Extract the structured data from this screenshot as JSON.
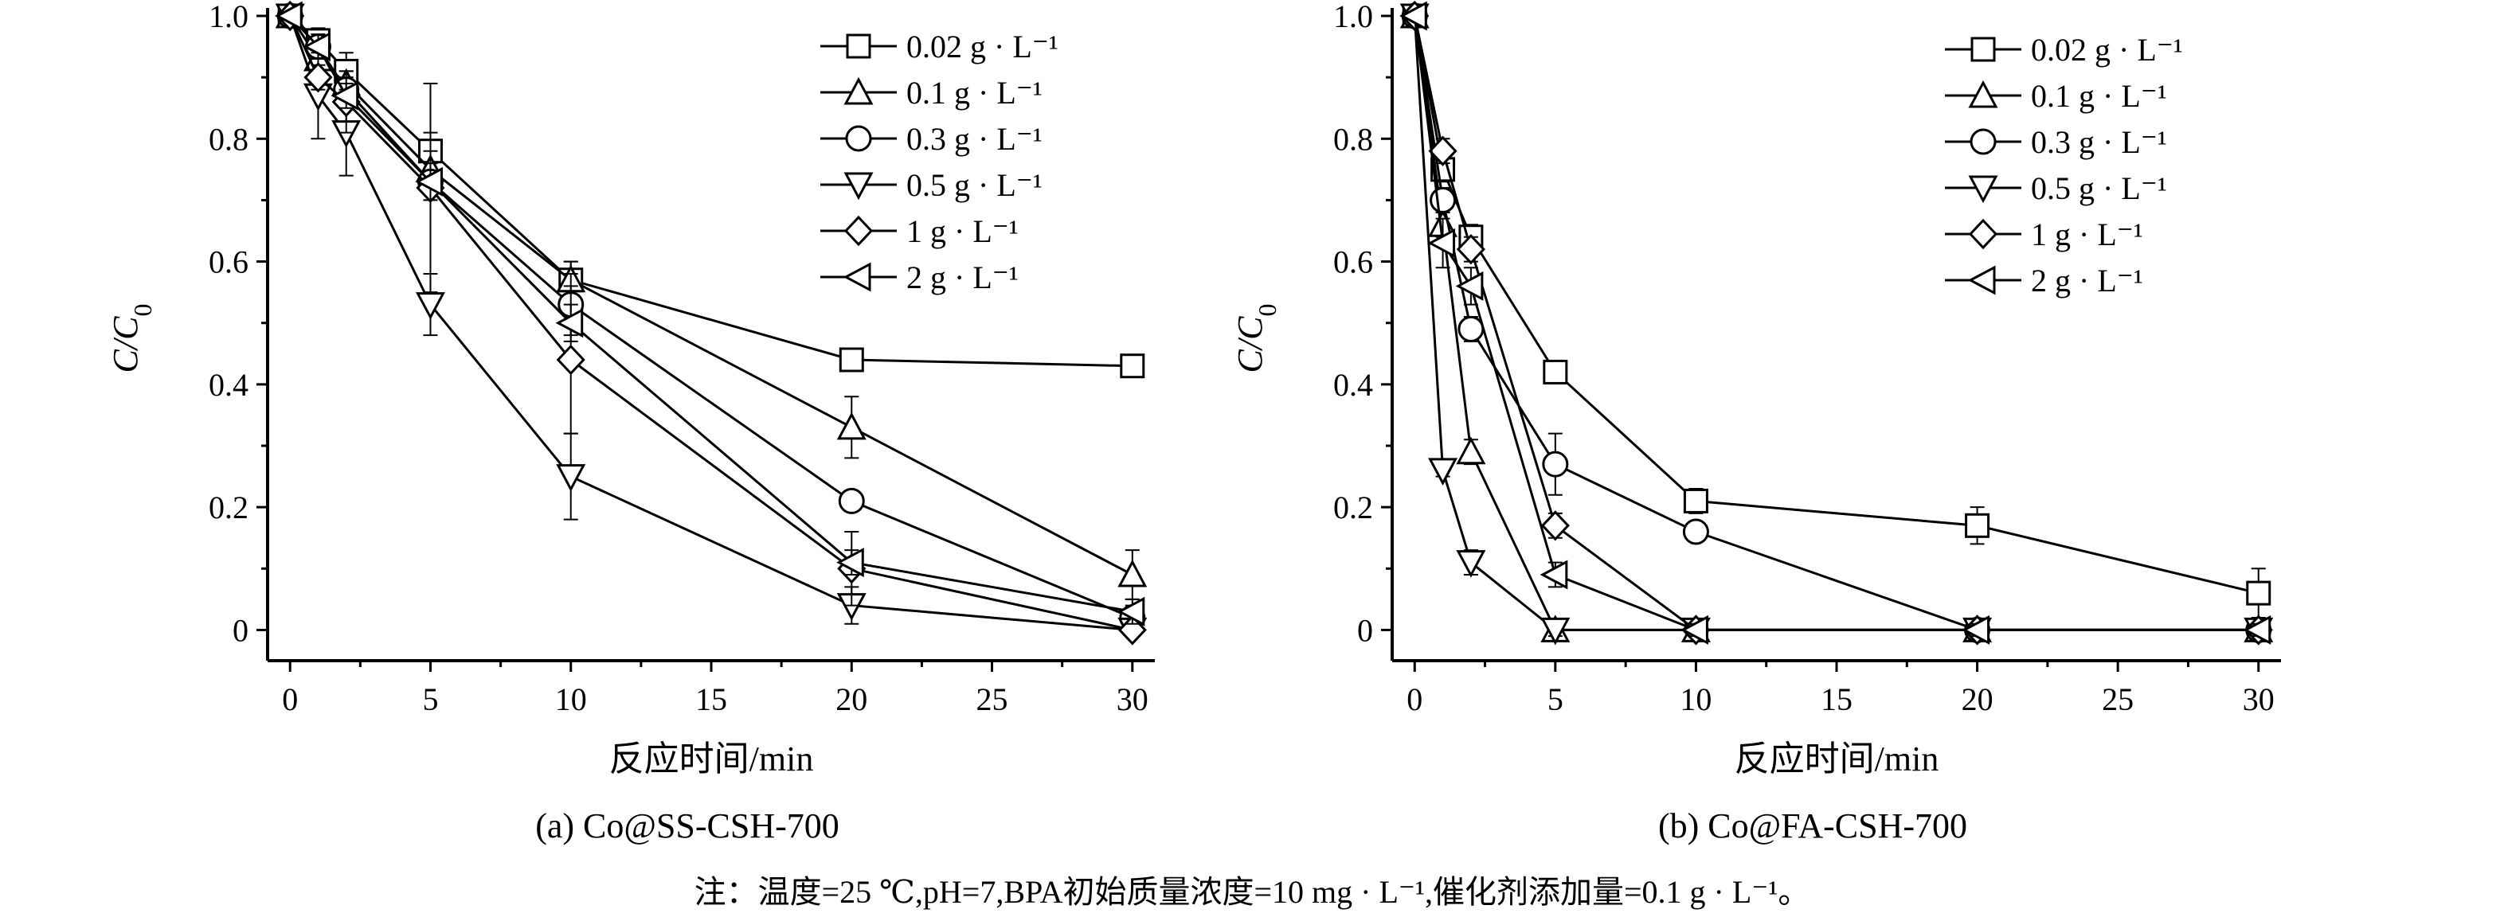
{
  "chart_data": [
    {
      "type": "line",
      "caption": "(a) Co@SS-CSH-700",
      "xlabel": "反应时间/min",
      "ylabel_main": "C/C",
      "ylabel_sub": "0",
      "xlim": [
        -0.8,
        30.8
      ],
      "ylim": [
        -0.05,
        1.0
      ],
      "xticks": [
        0,
        5,
        10,
        15,
        20,
        25,
        30
      ],
      "yticks": [
        0,
        0.2,
        0.4,
        0.6,
        0.8,
        1.0
      ],
      "ytick_labels": [
        "0",
        "0.2",
        "0.4",
        "0.6",
        "0.8",
        "1.0"
      ],
      "legend_position": "top-right",
      "series": [
        {
          "name": "0.02 g · L⁻¹",
          "marker": "square",
          "x": [
            0,
            1,
            2,
            5,
            10,
            20,
            30
          ],
          "y": [
            1.0,
            0.96,
            0.91,
            0.78,
            0.57,
            0.44,
            0.43
          ],
          "err": [
            0,
            0.02,
            0.03,
            0.03,
            0.03,
            0.01,
            0.01
          ]
        },
        {
          "name": "0.1 g · L⁻¹",
          "marker": "triangle-up",
          "x": [
            0,
            1,
            2,
            5,
            10,
            20,
            30
          ],
          "y": [
            1.0,
            0.93,
            0.89,
            0.75,
            0.57,
            0.33,
            0.09
          ],
          "err": [
            0,
            0.02,
            0.02,
            0.03,
            0.03,
            0.05,
            0.04
          ]
        },
        {
          "name": "0.3 g · L⁻¹",
          "marker": "circle",
          "x": [
            0,
            1,
            2,
            5,
            10,
            20,
            30
          ],
          "y": [
            1.0,
            0.95,
            0.88,
            0.73,
            0.53,
            0.21,
            0.02
          ],
          "err": [
            0,
            0.02,
            0.02,
            0.03,
            0.05,
            0.01,
            0.02
          ]
        },
        {
          "name": "0.5 g · L⁻¹",
          "marker": "triangle-down",
          "x": [
            0,
            1,
            2,
            5,
            10,
            20,
            30
          ],
          "y": [
            1.0,
            0.87,
            0.81,
            0.53,
            0.25,
            0.04,
            0.0
          ],
          "err": [
            0,
            0.07,
            0.07,
            0.05,
            0.07,
            0.03,
            0.01
          ]
        },
        {
          "name": "1 g · L⁻¹",
          "marker": "diamond",
          "x": [
            0,
            1,
            2,
            5,
            10,
            20,
            30
          ],
          "y": [
            1.0,
            0.9,
            0.86,
            0.72,
            0.44,
            0.1,
            0.0
          ],
          "err": [
            0,
            0.02,
            0.05,
            0.17,
            0.12,
            0.06,
            0.01
          ]
        },
        {
          "name": "2 g · L⁻¹",
          "marker": "triangle-left",
          "x": [
            0,
            1,
            2,
            5,
            10,
            20,
            30
          ],
          "y": [
            1.0,
            0.95,
            0.87,
            0.73,
            0.5,
            0.11,
            0.03
          ],
          "err": [
            0,
            0.02,
            0.02,
            0.03,
            0.03,
            0.02,
            0.02
          ]
        }
      ]
    },
    {
      "type": "line",
      "caption": "(b) Co@FA-CSH-700",
      "xlabel": "反应时间/min",
      "ylabel_main": "C/C",
      "ylabel_sub": "0",
      "xlim": [
        -0.8,
        30.8
      ],
      "ylim": [
        -0.05,
        1.0
      ],
      "xticks": [
        0,
        5,
        10,
        15,
        20,
        25,
        30
      ],
      "yticks": [
        0,
        0.2,
        0.4,
        0.6,
        0.8,
        1.0
      ],
      "ytick_labels": [
        "0",
        "0.2",
        "0.4",
        "0.6",
        "0.8",
        "1.0"
      ],
      "legend_position": "top-right",
      "series": [
        {
          "name": "0.02 g · L⁻¹",
          "marker": "square",
          "x": [
            0,
            1,
            2,
            5,
            10,
            20,
            30
          ],
          "y": [
            1.0,
            0.75,
            0.64,
            0.42,
            0.21,
            0.17,
            0.06
          ],
          "err": [
            0,
            0.02,
            0.02,
            0.01,
            0.02,
            0.03,
            0.04
          ]
        },
        {
          "name": "0.1 g · L⁻¹",
          "marker": "triangle-up",
          "x": [
            0,
            1,
            2,
            5,
            10,
            20,
            30
          ],
          "y": [
            1.0,
            0.66,
            0.29,
            0.0,
            0.0,
            0.0,
            0.0
          ],
          "err": [
            0,
            0.02,
            0.02,
            0.01,
            0.01,
            0.01,
            0.01
          ]
        },
        {
          "name": "0.3 g · L⁻¹",
          "marker": "circle",
          "x": [
            0,
            1,
            2,
            5,
            10,
            20,
            30
          ],
          "y": [
            1.0,
            0.7,
            0.49,
            0.27,
            0.16,
            0.0,
            0.0
          ],
          "err": [
            0,
            0.02,
            0.02,
            0.05,
            0.01,
            0.01,
            0.01
          ]
        },
        {
          "name": "0.5 g · L⁻¹",
          "marker": "triangle-down",
          "x": [
            0,
            1,
            2,
            5,
            10,
            20,
            30
          ],
          "y": [
            1.0,
            0.26,
            0.11,
            0.0,
            0.0,
            0.0,
            0.0
          ],
          "err": [
            0,
            0.01,
            0.02,
            0.01,
            0.01,
            0.01,
            0.01
          ]
        },
        {
          "name": "1 g · L⁻¹",
          "marker": "diamond",
          "x": [
            0,
            1,
            2,
            5,
            10,
            20,
            30
          ],
          "y": [
            1.0,
            0.78,
            0.62,
            0.17,
            0.0,
            0.0,
            0.0
          ],
          "err": [
            0,
            0.02,
            0.02,
            0.02,
            0.01,
            0.01,
            0.01
          ]
        },
        {
          "name": "2 g · L⁻¹",
          "marker": "triangle-left",
          "x": [
            0,
            1,
            2,
            5,
            10,
            20,
            30
          ],
          "y": [
            1.0,
            0.63,
            0.56,
            0.09,
            0.0,
            0.0,
            0.0
          ],
          "err": [
            0,
            0.04,
            0.03,
            0.02,
            0.01,
            0.01,
            0.01
          ]
        }
      ]
    }
  ],
  "note": "注：温度=25 ℃,pH=7,BPA初始质量浓度=10 mg · L⁻¹,催化剂添加量=0.1 g · L⁻¹。",
  "colors": {
    "ink": "#000000",
    "background": "#ffffff"
  }
}
